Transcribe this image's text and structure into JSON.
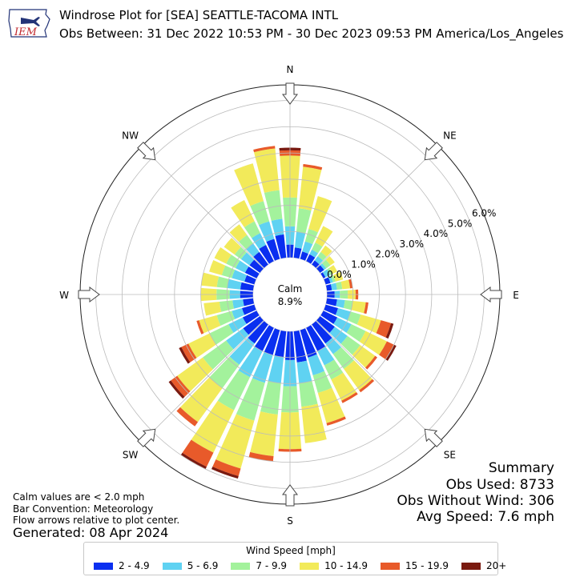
{
  "header": {
    "title_line1": "Windrose Plot for [SEA] SEATTLE-TACOMA INTL",
    "title_line2": "Obs Between: 31 Dec 2022 10:53 PM - 30 Dec 2023 09:53 PM America/Los_Angeles",
    "logo_text": "IEM",
    "logo_icon": "iowa-state-outline-icon"
  },
  "chart_data": {
    "type": "windrose",
    "calm_label": "Calm",
    "calm_value": "8.9%",
    "direction_labels": [
      "N",
      "NE",
      "E",
      "SE",
      "S",
      "SW",
      "W",
      "NW"
    ],
    "radial_ticks": [
      "0.0%",
      "1.0%",
      "2.0%",
      "3.0%",
      "4.0%",
      "5.0%",
      "6.0%"
    ],
    "radial_max": 6.6,
    "direction_bins_deg": [
      0,
      10,
      20,
      30,
      40,
      50,
      60,
      70,
      80,
      90,
      100,
      110,
      120,
      130,
      140,
      150,
      160,
      170,
      180,
      190,
      200,
      210,
      220,
      230,
      240,
      250,
      260,
      270,
      280,
      290,
      300,
      310,
      320,
      330,
      340,
      350
    ],
    "speed_bins": [
      {
        "label": "2 - 4.9",
        "color": "#0a2ff0"
      },
      {
        "label": "5 - 6.9",
        "color": "#5fd2f2"
      },
      {
        "label": "7 - 9.9",
        "color": "#a3f29c"
      },
      {
        "label": "10 - 14.9",
        "color": "#f2ea5a"
      },
      {
        "label": "15 - 19.9",
        "color": "#e85a2a"
      },
      {
        "label": "20+",
        "color": "#7a1a10"
      }
    ],
    "cumulative_percent": [
      [
        0.5,
        1.2,
        2.3,
        3.9,
        4.1,
        4.2
      ],
      [
        0.4,
        1.0,
        1.9,
        3.5,
        3.6,
        3.6
      ],
      [
        0.3,
        0.7,
        1.2,
        2.5,
        2.5,
        2.5
      ],
      [
        0.3,
        0.5,
        0.8,
        1.5,
        1.5,
        1.5
      ],
      [
        0.2,
        0.4,
        0.6,
        0.9,
        0.9,
        0.9
      ],
      [
        0.2,
        0.3,
        0.5,
        0.7,
        0.7,
        0.7
      ],
      [
        0.1,
        0.3,
        0.4,
        0.6,
        0.6,
        0.6
      ],
      [
        0.2,
        0.3,
        0.4,
        0.7,
        0.7,
        0.7
      ],
      [
        0.2,
        0.4,
        0.6,
        0.9,
        1.0,
        1.0
      ],
      [
        0.3,
        0.5,
        0.8,
        1.1,
        1.2,
        1.2
      ],
      [
        0.4,
        0.7,
        1.0,
        1.5,
        1.6,
        1.6
      ],
      [
        0.5,
        1.0,
        1.4,
        2.2,
        2.6,
        2.7
      ],
      [
        0.6,
        1.2,
        1.8,
        2.7,
        3.0,
        3.1
      ],
      [
        0.7,
        1.3,
        1.9,
        2.6,
        2.7,
        2.7
      ],
      [
        0.9,
        1.4,
        2.1,
        3.1,
        3.2,
        3.2
      ],
      [
        1.0,
        1.6,
        2.2,
        3.1,
        3.2,
        3.2
      ],
      [
        1.1,
        1.8,
        2.5,
        3.7,
        3.8,
        3.8
      ],
      [
        1.2,
        2.0,
        2.9,
        4.3,
        4.3,
        4.3
      ],
      [
        1.1,
        2.1,
        3.1,
        4.5,
        4.6,
        4.6
      ],
      [
        1.0,
        2.0,
        3.2,
        4.8,
        5.0,
        5.0
      ],
      [
        1.0,
        2.1,
        3.6,
        5.5,
        5.8,
        5.9
      ],
      [
        1.0,
        2.1,
        3.5,
        5.3,
        5.9,
        6.0
      ],
      [
        0.9,
        1.9,
        3.0,
        4.6,
        4.8,
        4.8
      ],
      [
        0.8,
        1.6,
        2.7,
        3.9,
        4.2,
        4.3
      ],
      [
        0.6,
        1.2,
        2.0,
        2.9,
        3.2,
        3.3
      ],
      [
        0.5,
        0.9,
        1.5,
        2.2,
        2.3,
        2.3
      ],
      [
        0.4,
        0.8,
        1.3,
        1.9,
        1.9,
        1.9
      ],
      [
        0.5,
        0.9,
        1.4,
        2.0,
        2.0,
        2.0
      ],
      [
        0.5,
        1.0,
        1.4,
        2.0,
        2.0,
        2.0
      ],
      [
        0.4,
        0.9,
        1.3,
        1.8,
        1.8,
        1.8
      ],
      [
        0.5,
        0.9,
        1.3,
        1.8,
        1.8,
        1.8
      ],
      [
        0.5,
        0.9,
        1.2,
        1.7,
        1.7,
        1.7
      ],
      [
        0.6,
        1.0,
        1.4,
        1.9,
        1.9,
        1.9
      ],
      [
        0.7,
        1.2,
        1.7,
        2.6,
        2.6,
        2.6
      ],
      [
        0.8,
        1.5,
        2.3,
        3.8,
        3.8,
        3.8
      ],
      [
        0.9,
        1.5,
        2.6,
        4.2,
        4.3,
        4.3
      ]
    ],
    "flow_arrows": "relative to plot center"
  },
  "summary": {
    "title": "Summary",
    "obs_used": "Obs Used: 8733",
    "obs_without_wind": "Obs Without Wind: 306",
    "avg_speed": "Avg Speed: 7.6 mph"
  },
  "footnotes": {
    "calm_def": "Calm values are < 2.0 mph",
    "bar_convention": "Bar Convention: Meteorology",
    "flow_arrows": "Flow arrows relative to plot center.",
    "generated": "Generated: 08 Apr 2024"
  },
  "legend": {
    "title": "Wind Speed [mph]"
  }
}
